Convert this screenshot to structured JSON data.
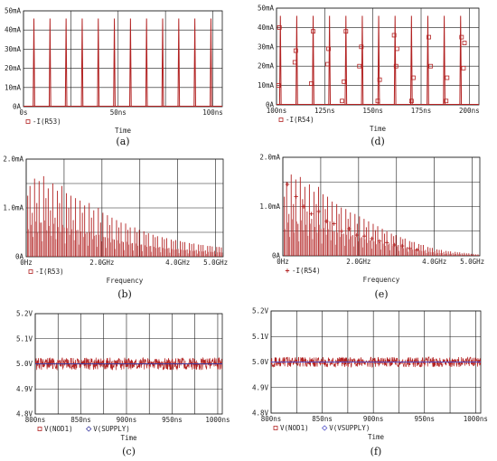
{
  "chart_data": [
    {
      "id": "a",
      "caption": "(a)",
      "type": "line",
      "xlabel": "Time",
      "ylabel": "",
      "xlim": [
        0,
        105
      ],
      "ylim": [
        0,
        50
      ],
      "x_ticks": [
        {
          "v": 0,
          "t": "0s"
        },
        {
          "v": 50,
          "t": "50ns"
        },
        {
          "v": 100,
          "t": "100ns"
        }
      ],
      "y_ticks": [
        {
          "v": 0,
          "t": "0A"
        },
        {
          "v": 10,
          "t": "10mA"
        },
        {
          "v": 20,
          "t": "20mA"
        },
        {
          "v": 30,
          "t": "30mA"
        },
        {
          "v": 40,
          "t": "40mA"
        },
        {
          "v": 50,
          "t": "50mA"
        }
      ],
      "x_grid": [
        0,
        25,
        50,
        75,
        100
      ],
      "y_grid": [
        0,
        10,
        20,
        30,
        40,
        50
      ],
      "series": [
        {
          "name": "-I(R53)",
          "marker": "square",
          "color": "#b22222",
          "pulse_times": [
            5.5,
            14,
            22.5,
            31,
            39.5,
            48,
            56.5,
            65,
            73.5,
            82,
            90.5,
            99
          ],
          "pulse_peak": 46,
          "pulse_width": 0.8
        }
      ]
    },
    {
      "id": "d",
      "caption": "(d)",
      "type": "line",
      "xlabel": "Time",
      "ylabel": "",
      "xlim": [
        100,
        205
      ],
      "ylim": [
        0,
        50
      ],
      "x_ticks": [
        {
          "v": 100,
          "t": "100ns"
        },
        {
          "v": 125,
          "t": "125ns"
        },
        {
          "v": 150,
          "t": "150ns"
        },
        {
          "v": 175,
          "t": "175ns"
        },
        {
          "v": 200,
          "t": "200ns"
        }
      ],
      "y_ticks": [
        {
          "v": 0,
          "t": "0A"
        },
        {
          "v": 10,
          "t": "10mA"
        },
        {
          "v": 20,
          "t": "20mA"
        },
        {
          "v": 30,
          "t": "30mA"
        },
        {
          "v": 40,
          "t": "40mA"
        },
        {
          "v": 50,
          "t": "50mA"
        }
      ],
      "x_grid": [
        100,
        125,
        150,
        175,
        200
      ],
      "y_grid": [
        0,
        10,
        20,
        30,
        40,
        50
      ],
      "series": [
        {
          "name": "-I(R54)",
          "marker": "square",
          "color": "#b22222",
          "pulse_times": [
            102,
            110.5,
            119,
            127.5,
            136,
            144.5,
            153,
            161.5,
            170,
            178.5,
            187,
            195.5
          ],
          "pulse_peak": 46,
          "pulse_width": 0.8,
          "markers": [
            [
              101,
              10
            ],
            [
              101.5,
              40
            ],
            [
              109.5,
              22
            ],
            [
              110,
              28
            ],
            [
              118,
              11
            ],
            [
              119,
              38
            ],
            [
              126.5,
              21
            ],
            [
              127,
              29
            ],
            [
              134,
              2
            ],
            [
              135,
              12
            ],
            [
              136,
              38
            ],
            [
              143,
              20
            ],
            [
              144,
              30
            ],
            [
              152.5,
              2
            ],
            [
              153.5,
              13
            ],
            [
              161,
              36
            ],
            [
              162,
              20
            ],
            [
              162.5,
              29
            ],
            [
              170,
              2
            ],
            [
              171,
              14
            ],
            [
              179,
              35
            ],
            [
              180,
              20
            ],
            [
              188,
              2
            ],
            [
              188.5,
              14
            ],
            [
              196,
              35
            ],
            [
              197,
              19
            ],
            [
              197.5,
              32
            ]
          ]
        }
      ]
    },
    {
      "id": "b",
      "caption": "(b)",
      "type": "bar",
      "xlabel": "Frequency",
      "ylabel": "",
      "xlim": [
        0,
        5.2
      ],
      "ylim": [
        0,
        2.0
      ],
      "x_ticks": [
        {
          "v": 0,
          "t": "0Hz"
        },
        {
          "v": 2.0,
          "t": "2.0GHz"
        },
        {
          "v": 4.0,
          "t": "4.0GHz"
        },
        {
          "v": 5.0,
          "t": "5.0GHz"
        }
      ],
      "y_ticks": [
        {
          "v": 0,
          "t": "0A"
        },
        {
          "v": 1.0,
          "t": "1.0mA"
        },
        {
          "v": 2.0,
          "t": "2.0mA"
        }
      ],
      "x_grid": [
        0,
        1,
        2,
        3,
        4,
        5
      ],
      "y_grid": [
        0,
        0.5,
        1.0,
        1.5,
        2.0
      ],
      "series": [
        {
          "name": "-I(R53)",
          "marker": "square",
          "color": "#b22222",
          "spectrum_values": [
            1.25,
            1.45,
            0.9,
            1.6,
            1.1,
            1.55,
            0.7,
            1.65,
            1.2,
            1.4,
            0.95,
            1.5,
            0.8,
            1.35,
            1.1,
            1.45,
            0.6,
            1.3,
            1.0,
            1.25,
            0.75,
            1.2,
            0.55,
            1.15,
            0.9,
            1.05,
            0.5,
            1.1,
            0.8,
            0.95,
            0.45,
            1.0,
            0.7,
            0.9,
            0.4,
            0.85,
            0.65,
            0.8,
            0.35,
            0.75,
            0.6,
            0.7,
            0.3,
            0.68,
            0.55,
            0.6,
            0.28,
            0.6,
            0.5,
            0.55,
            0.25,
            0.52,
            0.45,
            0.48,
            0.22,
            0.45,
            0.4,
            0.42,
            0.2,
            0.4,
            0.36,
            0.38,
            0.18,
            0.35,
            0.32,
            0.34,
            0.16,
            0.32,
            0.3,
            0.3,
            0.15,
            0.28,
            0.26,
            0.27,
            0.14,
            0.25,
            0.24,
            0.24,
            0.13,
            0.22,
            0.22,
            0.21,
            0.12,
            0.2,
            0.2,
            0.19
          ]
        }
      ]
    },
    {
      "id": "e",
      "caption": "(e)",
      "type": "bar",
      "xlabel": "Frequency",
      "ylabel": "",
      "xlim": [
        0,
        5.2
      ],
      "ylim": [
        0,
        2.0
      ],
      "x_ticks": [
        {
          "v": 0,
          "t": "0Hz"
        },
        {
          "v": 2.0,
          "t": "2.0GHz"
        },
        {
          "v": 4.0,
          "t": "4.0GHz"
        },
        {
          "v": 5.0,
          "t": "5.0GHz"
        }
      ],
      "y_ticks": [
        {
          "v": 0,
          "t": "0A"
        },
        {
          "v": 1.0,
          "t": "1.0mA"
        },
        {
          "v": 2.0,
          "t": "2.0mA"
        }
      ],
      "x_grid": [
        0,
        1,
        2,
        3,
        4,
        5
      ],
      "y_grid": [
        0,
        0.5,
        1.0,
        1.5,
        2.0
      ],
      "series": [
        {
          "name": "-I(R54)",
          "marker": "star",
          "color": "#b22222",
          "spectrum_values": [
            1.2,
            1.5,
            0.85,
            1.65,
            1.05,
            1.55,
            0.65,
            1.6,
            1.15,
            1.4,
            0.9,
            1.45,
            0.75,
            1.3,
            1.05,
            1.4,
            0.55,
            1.25,
            0.95,
            1.2,
            0.7,
            1.1,
            0.5,
            1.05,
            0.85,
            0.98,
            0.45,
            0.95,
            0.75,
            0.88,
            0.42,
            0.85,
            0.65,
            0.8,
            0.38,
            0.75,
            0.58,
            0.7,
            0.32,
            0.65,
            0.52,
            0.6,
            0.28,
            0.55,
            0.45,
            0.5,
            0.25,
            0.45,
            0.4,
            0.42,
            0.22,
            0.38,
            0.34,
            0.35,
            0.18,
            0.3,
            0.28,
            0.28,
            0.15,
            0.24,
            0.22,
            0.22,
            0.12,
            0.18,
            0.16,
            0.16,
            0.1,
            0.13,
            0.12,
            0.12,
            0.08,
            0.1,
            0.09,
            0.09,
            0.06,
            0.08,
            0.07,
            0.07,
            0.05,
            0.06,
            0.05,
            0.05,
            0.04,
            0.04,
            0.03,
            0.03
          ],
          "markers": [
            [
              0.12,
              1.45
            ],
            [
              0.35,
              1.2
            ],
            [
              0.55,
              1.0
            ],
            [
              0.75,
              0.85
            ],
            [
              0.95,
              0.9
            ],
            [
              1.15,
              0.7
            ],
            [
              1.35,
              0.65
            ],
            [
              1.55,
              0.5
            ],
            [
              1.75,
              0.55
            ],
            [
              1.95,
              0.42
            ],
            [
              2.15,
              0.4
            ],
            [
              2.35,
              0.35
            ],
            [
              2.55,
              0.3
            ],
            [
              2.75,
              0.27
            ],
            [
              2.95,
              0.22
            ],
            [
              3.15,
              0.2
            ],
            [
              3.35,
              0.15
            ],
            [
              3.55,
              0.12
            ]
          ]
        }
      ]
    },
    {
      "id": "c",
      "caption": "(c)",
      "type": "line",
      "xlabel": "Time",
      "ylabel": "",
      "xlim": [
        800,
        1005
      ],
      "ylim": [
        4.8,
        5.2
      ],
      "x_ticks": [
        {
          "v": 800,
          "t": "800ns"
        },
        {
          "v": 850,
          "t": "850ns"
        },
        {
          "v": 900,
          "t": "900ns"
        },
        {
          "v": 950,
          "t": "950ns"
        },
        {
          "v": 1000,
          "t": "1000ns"
        }
      ],
      "y_ticks": [
        {
          "v": 4.8,
          "t": "4.8V"
        },
        {
          "v": 4.9,
          "t": "4.9V"
        },
        {
          "v": 5.0,
          "t": "5.0V"
        },
        {
          "v": 5.1,
          "t": "5.1V"
        },
        {
          "v": 5.2,
          "t": "5.2V"
        }
      ],
      "x_grid": [
        800,
        825,
        850,
        875,
        900,
        925,
        950,
        975,
        1000
      ],
      "y_grid": [
        4.8,
        4.9,
        5.0,
        5.1,
        5.2
      ],
      "series": [
        {
          "name": "V(NOD1)",
          "marker": "square",
          "color": "#b22222",
          "level": 5.0,
          "ripple": 0.025
        },
        {
          "name": "V(SUPPLY)",
          "marker": "diamond",
          "color": "#3a3aa0",
          "level": 5.0,
          "ripple": 0.0
        }
      ]
    },
    {
      "id": "f",
      "caption": "(f)",
      "type": "line",
      "xlabel": "Time",
      "ylabel": "",
      "xlim": [
        800,
        1005
      ],
      "ylim": [
        4.8,
        5.2
      ],
      "x_ticks": [
        {
          "v": 800,
          "t": "800ns"
        },
        {
          "v": 850,
          "t": "850ns"
        },
        {
          "v": 900,
          "t": "900ns"
        },
        {
          "v": 950,
          "t": "950ns"
        },
        {
          "v": 1000,
          "t": "1000ns"
        }
      ],
      "y_ticks": [
        {
          "v": 4.8,
          "t": "4.8V"
        },
        {
          "v": 4.9,
          "t": "4.9V"
        },
        {
          "v": 5.0,
          "t": "5.0V"
        },
        {
          "v": 5.1,
          "t": "5.1V"
        },
        {
          "v": 5.2,
          "t": "5.2V"
        }
      ],
      "x_grid": [
        800,
        825,
        850,
        875,
        900,
        925,
        950,
        975,
        1000
      ],
      "y_grid": [
        4.8,
        4.9,
        5.0,
        5.1,
        5.2
      ],
      "series": [
        {
          "name": "V(NOD1)",
          "marker": "square",
          "color": "#b22222",
          "level": 5.0,
          "ripple": 0.02
        },
        {
          "name": "V(VSUPPLY)",
          "marker": "diamond",
          "color": "#5050c8",
          "level": 5.0,
          "ripple": 0.0
        }
      ]
    }
  ]
}
